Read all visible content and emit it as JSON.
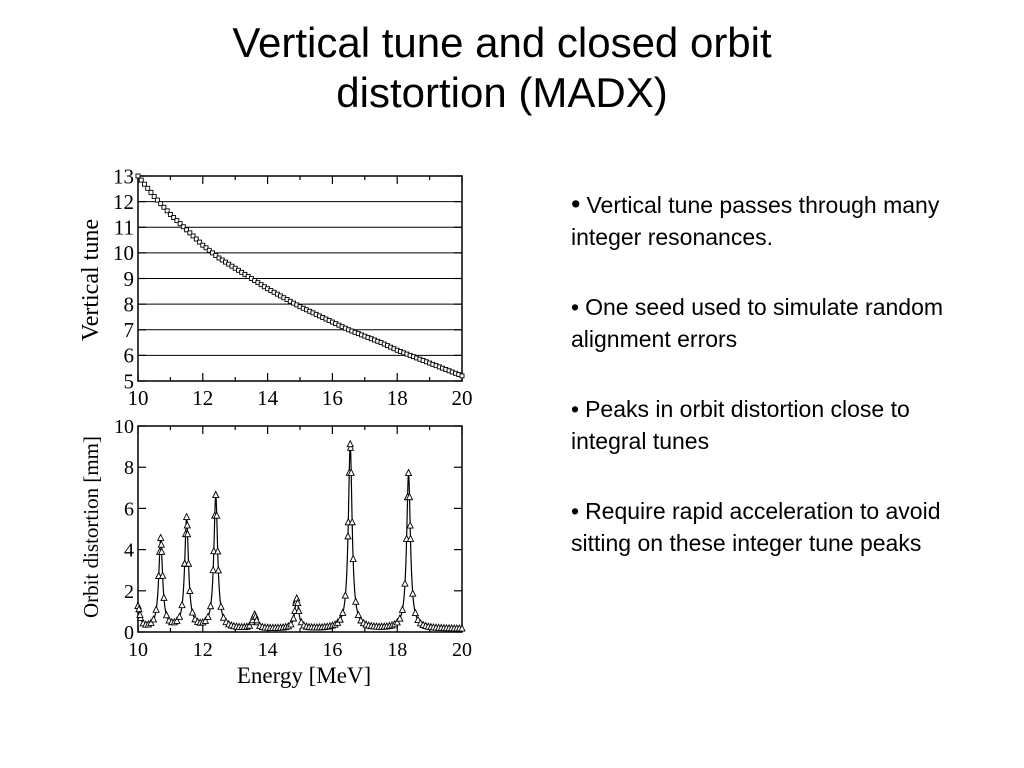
{
  "slide": {
    "title_line1": "Vertical tune and closed orbit",
    "title_line2": "distortion (MADX)"
  },
  "bullets": [
    "Vertical tune passes through many integer resonances.",
    "One seed used to simulate random alignment errors",
    "Peaks in orbit distortion close to integral tunes",
    "Require rapid acceleration to avoid sitting on these integer tune peaks"
  ],
  "chart_data": [
    {
      "type": "line",
      "xlabel": "",
      "ylabel": "Vertical tune",
      "xlim": [
        10,
        20
      ],
      "ylim": [
        5,
        13
      ],
      "xticks": [
        10,
        12,
        14,
        16,
        18,
        20
      ],
      "yticks": [
        5,
        6,
        7,
        8,
        9,
        10,
        11,
        12,
        13
      ],
      "grid": "horizontal lines at each integer tune",
      "marker": "open square",
      "series": [
        {
          "x": [
            10,
            10.5,
            11,
            11.5,
            12,
            12.5,
            13,
            13.5,
            14,
            14.5,
            15,
            15.5,
            16,
            16.5,
            17,
            17.5,
            18,
            18.5,
            19,
            19.5,
            20
          ],
          "y": [
            13.0,
            12.2,
            11.5,
            10.9,
            10.3,
            9.8,
            9.4,
            9.0,
            8.6,
            8.25,
            7.9,
            7.6,
            7.3,
            7.0,
            6.75,
            6.5,
            6.2,
            5.95,
            5.7,
            5.45,
            5.2
          ]
        }
      ]
    },
    {
      "type": "line",
      "xlabel": "Energy [MeV]",
      "ylabel": "Orbit distortion [mm]",
      "xlim": [
        10,
        20
      ],
      "ylim": [
        0,
        10
      ],
      "xticks": [
        10,
        12,
        14,
        16,
        18,
        20
      ],
      "yticks": [
        0,
        2,
        4,
        6,
        8,
        10
      ],
      "grid": "off",
      "marker": "open triangle",
      "baseline": 0.15,
      "peaks": [
        {
          "x": 10.0,
          "y": 1.2
        },
        {
          "x": 10.7,
          "y": 4.5
        },
        {
          "x": 11.5,
          "y": 5.5
        },
        {
          "x": 12.4,
          "y": 6.6
        },
        {
          "x": 13.6,
          "y": 0.8
        },
        {
          "x": 14.9,
          "y": 1.6
        },
        {
          "x": 16.55,
          "y": 9.1
        },
        {
          "x": 18.35,
          "y": 7.7
        }
      ]
    }
  ]
}
